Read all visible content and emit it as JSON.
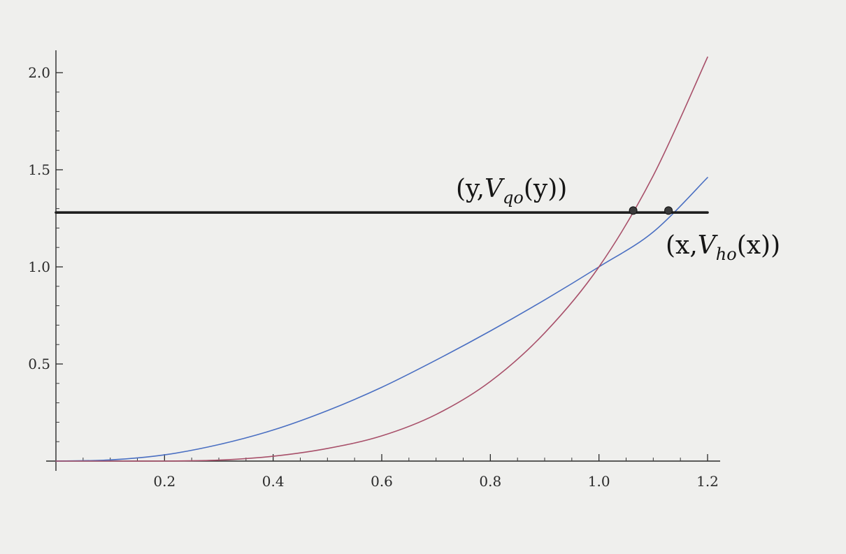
{
  "chart_data": {
    "type": "line",
    "title": "",
    "xlabel": "",
    "ylabel": "",
    "xlim": [
      0,
      1.2
    ],
    "ylim": [
      0,
      2.0
    ],
    "grid": false,
    "x_ticks": [
      {
        "value": 0.2,
        "label": "0.2"
      },
      {
        "value": 0.4,
        "label": "0.4"
      },
      {
        "value": 0.6,
        "label": "0.6"
      },
      {
        "value": 0.8,
        "label": "0.8"
      },
      {
        "value": 1.0,
        "label": "1.0"
      },
      {
        "value": 1.2,
        "label": "1.2"
      }
    ],
    "y_ticks": [
      {
        "value": 0.5,
        "label": "0.5"
      },
      {
        "value": 1.0,
        "label": "1.0"
      },
      {
        "value": 1.5,
        "label": "1.5"
      },
      {
        "value": 2.0,
        "label": "2.0"
      }
    ],
    "series": [
      {
        "color": "#4a6fc2",
        "x": [
          0.0,
          0.1,
          0.2,
          0.3,
          0.4,
          0.5,
          0.6,
          0.7,
          0.8,
          0.9,
          1.0,
          1.1,
          1.2
        ],
        "y": [
          0.0,
          0.006,
          0.032,
          0.085,
          0.16,
          0.26,
          0.38,
          0.52,
          0.67,
          0.83,
          1.0,
          1.18,
          1.46
        ]
      },
      {
        "color": "#a8506a",
        "x": [
          0.0,
          0.1,
          0.2,
          0.3,
          0.4,
          0.5,
          0.6,
          0.7,
          0.8,
          0.9,
          1.0,
          1.1,
          1.2
        ],
        "y": [
          0.0,
          0.0,
          0.0,
          0.005,
          0.025,
          0.065,
          0.13,
          0.24,
          0.41,
          0.66,
          1.0,
          1.47,
          2.08
        ]
      },
      {
        "color": "#1e1e1e",
        "x": [
          0.0,
          1.2
        ],
        "y": [
          1.28,
          1.28
        ]
      }
    ],
    "points": [
      {
        "x": 1.063,
        "y": 1.29
      },
      {
        "x": 1.128,
        "y": 1.29
      }
    ],
    "annotations": [
      {
        "label": "(y,V_qo(y))",
        "text_open": "(y,",
        "text_v": "V",
        "text_sub": "qo",
        "text_close": "(y))"
      },
      {
        "label": "(x,V_ho(x))",
        "text_open": "(x,",
        "text_v": "V",
        "text_sub": "ho",
        "text_close": "(x))"
      }
    ]
  }
}
